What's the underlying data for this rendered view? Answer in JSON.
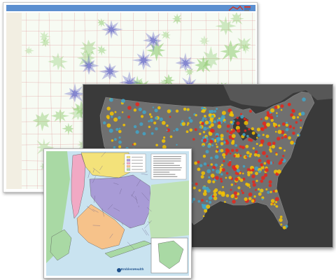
{
  "regional_map": {
    "header_label": "",
    "logo_text": "",
    "colors": {
      "header": "#5b8fd0",
      "land": "#f6faf2",
      "green": "#7cc45a",
      "purple": "#5b5fc4",
      "roads": "#e0a0a0"
    }
  },
  "us_heat_map": {
    "colors": {
      "background": "#3a3a3a",
      "land": "#6e6e6e",
      "low": "#41a5c8",
      "mid": "#f5c400",
      "high": "#e8261a"
    }
  },
  "nyc_map": {
    "brand": "EmblemHealth",
    "colors": {
      "water": "#c9e3f0",
      "land": "#a9d9a4",
      "borough_purple": "#a89bd6",
      "borough_yellow": "#f3e27a",
      "borough_pink": "#f1a9c4",
      "borough_orange": "#f6c28a"
    }
  }
}
